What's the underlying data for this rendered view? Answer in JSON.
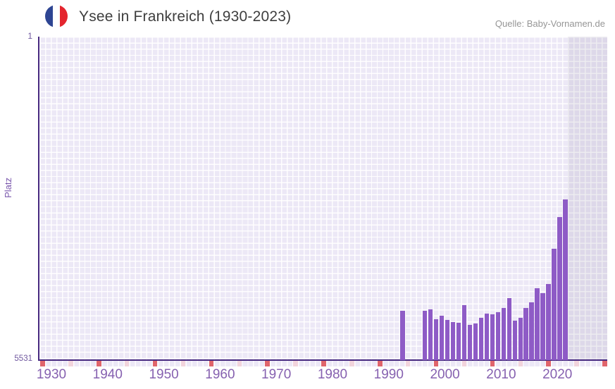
{
  "header": {
    "title": "Ysee in Frankreich (1930-2023)",
    "source": "Quelle: Baby-Vornamen.de"
  },
  "axes": {
    "y_title": "Platz",
    "y_top_label": "1",
    "y_bottom_label": "5531",
    "x_tick_labels": [
      "1930",
      "1940",
      "1950",
      "1960",
      "1970",
      "1980",
      "1990",
      "2000",
      "2010",
      "2020"
    ]
  },
  "chart_data": {
    "type": "bar",
    "title": "Ysee in Frankreich (1930-2023)",
    "xlabel": "",
    "ylabel": "Platz",
    "x_range": [
      1930,
      2030
    ],
    "y_axis": {
      "top_value": 1,
      "bottom_value": 5531,
      "inverted": true,
      "note": "rank 1 at top, bars rise from bottom (rank 5531) toward better ranks"
    },
    "series": [
      {
        "name": "Platz (rank of name Ysee in France)",
        "points": [
          {
            "year": 1994,
            "rank": 4692
          },
          {
            "year": 1998,
            "rank": 4688
          },
          {
            "year": 1999,
            "rank": 4660
          },
          {
            "year": 2000,
            "rank": 4833
          },
          {
            "year": 2001,
            "rank": 4773
          },
          {
            "year": 2002,
            "rank": 4840
          },
          {
            "year": 2003,
            "rank": 4881
          },
          {
            "year": 2004,
            "rank": 4893
          },
          {
            "year": 2005,
            "rank": 4592
          },
          {
            "year": 2006,
            "rank": 4925
          },
          {
            "year": 2007,
            "rank": 4901
          },
          {
            "year": 2008,
            "rank": 4809
          },
          {
            "year": 2009,
            "rank": 4740
          },
          {
            "year": 2010,
            "rank": 4752
          },
          {
            "year": 2011,
            "rank": 4713
          },
          {
            "year": 2012,
            "rank": 4644
          },
          {
            "year": 2013,
            "rank": 4471
          },
          {
            "year": 2014,
            "rank": 4852
          },
          {
            "year": 2015,
            "rank": 4804
          },
          {
            "year": 2016,
            "rank": 4636
          },
          {
            "year": 2017,
            "rank": 4548
          },
          {
            "year": 2018,
            "rank": 4306
          },
          {
            "year": 2019,
            "rank": 4391
          },
          {
            "year": 2020,
            "rank": 4234
          },
          {
            "year": 2021,
            "rank": 3631
          },
          {
            "year": 2022,
            "rank": 3088
          },
          {
            "year": 2023,
            "rank": 2786
          }
        ]
      }
    ],
    "axis_markers": {
      "decade_years": [
        1930,
        1940,
        1950,
        1960,
        1970,
        1980,
        1990,
        2000,
        2010,
        2020,
        2030
      ],
      "half_decade_years": [
        1935,
        1945,
        1955,
        1965,
        1975,
        1985,
        1995,
        2005,
        2015,
        2025
      ]
    },
    "no_data_region": [
      2024,
      2030
    ],
    "grid": true,
    "legend": "none"
  },
  "colors": {
    "bar": "#8e5bc6",
    "axis_line": "#472a80",
    "plot_bg": "#ece8f6",
    "grid_line": "rgba(255,255,255,0.92)",
    "future_band_tint": "rgba(90,80,120,0.10)",
    "decade_marker": "#e0656c",
    "half_decade_marker": "#f2d4dc",
    "tick_label": "#8661b0",
    "y_label": "#70589f",
    "y_title": "#7a57ad",
    "title_text": "#3e3e3e",
    "source_text": "#969696",
    "flag_blue": "#2e4593",
    "flag_white": "#ffffff",
    "flag_red": "#e4252e"
  }
}
